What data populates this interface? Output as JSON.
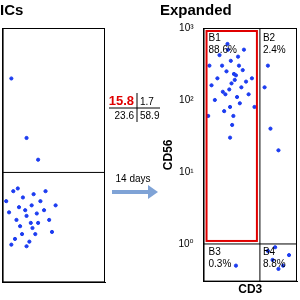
{
  "chart_data": [
    {
      "type": "scatter",
      "title": "ICs",
      "log": true,
      "grid": false,
      "tick_labels": false,
      "color": "#1c3cf0",
      "marker": "point",
      "xlim": [
        0.3,
        1000
      ],
      "ylim": [
        0.3,
        1000
      ],
      "gate": {
        "y": 10
      },
      "quadrants": {
        "values": [
          15.8,
          1.7,
          23.6,
          58.9
        ]
      },
      "x": [
        2,
        1.2,
        3,
        0.8,
        5,
        1.5,
        2.5,
        0.5,
        8,
        1,
        4,
        3.5,
        0.6,
        12,
        2,
        6,
        1.8,
        0.4,
        15,
        2.8,
        1.1,
        0.7,
        4.5,
        20,
        1.4,
        0.9,
        3.2,
        9,
        2,
        0.6,
        5
      ],
      "values": [
        2.5,
        1.8,
        3.5,
        1.2,
        2,
        4.5,
        1.1,
        2.8,
        3,
        6,
        1.4,
        5,
        1,
        2.2,
        0.95,
        4,
        3,
        4,
        1.5,
        2,
        3.3,
        5.5,
        2.7,
        3.5,
        1.4,
        2.2,
        1.7,
        5.5,
        30,
        200,
        15
      ]
    },
    {
      "type": "scatter",
      "title": "Expanded",
      "log": true,
      "grid": false,
      "tick_labels": "y",
      "color": "#1c3cf0",
      "marker": "point",
      "x_label": "CD3",
      "y_label": "CD56",
      "xlim": [
        0.3,
        1000
      ],
      "ylim": [
        0.3,
        1000
      ],
      "yticks": [
        {
          "value": 1,
          "label": "10⁰"
        },
        {
          "value": 10,
          "label": "10¹"
        },
        {
          "value": 100,
          "label": "10²"
        },
        {
          "value": 1000,
          "label": "10³"
        }
      ],
      "gate": {
        "x": 40,
        "y": 1
      },
      "quadrants": {
        "names": [
          "B1",
          "B2",
          "B3",
          "B4"
        ],
        "values": [
          88.6,
          2.4,
          0.3,
          8.8
        ],
        "value_labels": [
          "88.6%",
          "2.4%",
          "0.3%",
          "8.8%"
        ]
      },
      "x": [
        3.4,
        2,
        5,
        1.5,
        8,
        3,
        6,
        1,
        2.5,
        4,
        12,
        0.8,
        2.2,
        5.5,
        3.2,
        1.8,
        9,
        0.6,
        4.5,
        2.8,
        7,
        1.2,
        15,
        3.6,
        2.4,
        20,
        0.5,
        6.5,
        1.6,
        4.2,
        25,
        0.45,
        3,
        10,
        60,
        100,
        80,
        200,
        120,
        300,
        80,
        500,
        200,
        150,
        5
      ],
      "values": [
        170,
        120,
        220,
        300,
        150,
        80,
        400,
        200,
        500,
        60,
        180,
        100,
        250,
        110,
        350,
        70,
        260,
        160,
        190,
        140,
        90,
        420,
        120,
        45,
        600,
        200,
        300,
        300,
        130,
        230,
        80,
        60,
        30,
        500,
        150,
        40,
        300,
        20,
        0.6,
        0.5,
        0.8,
        0.7,
        0.45,
        0.9,
        0.5
      ]
    }
  ],
  "arrow_label": "14 days"
}
